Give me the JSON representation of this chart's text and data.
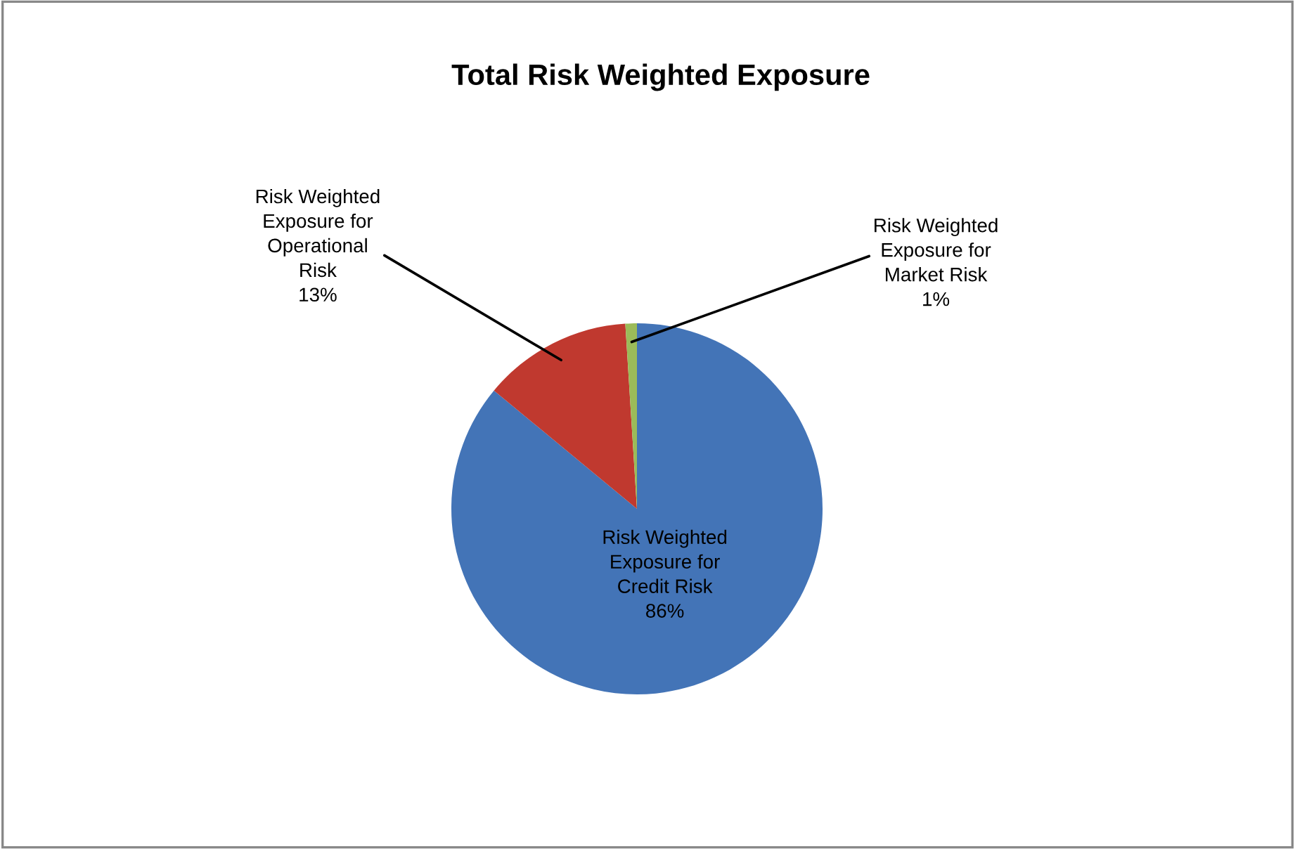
{
  "chart_data": {
    "type": "pie",
    "title": "Total Risk Weighted Exposure",
    "categories": [
      "Risk Weighted Exposure for Credit Risk",
      "Risk Weighted Exposure for Operational Risk",
      "Risk Weighted Exposure for Market Risk"
    ],
    "values": [
      86,
      13,
      1
    ],
    "colors": [
      "#4374b7",
      "#c0392f",
      "#9bbb59"
    ],
    "value_labels": [
      "86%",
      "13%",
      "1%"
    ]
  }
}
